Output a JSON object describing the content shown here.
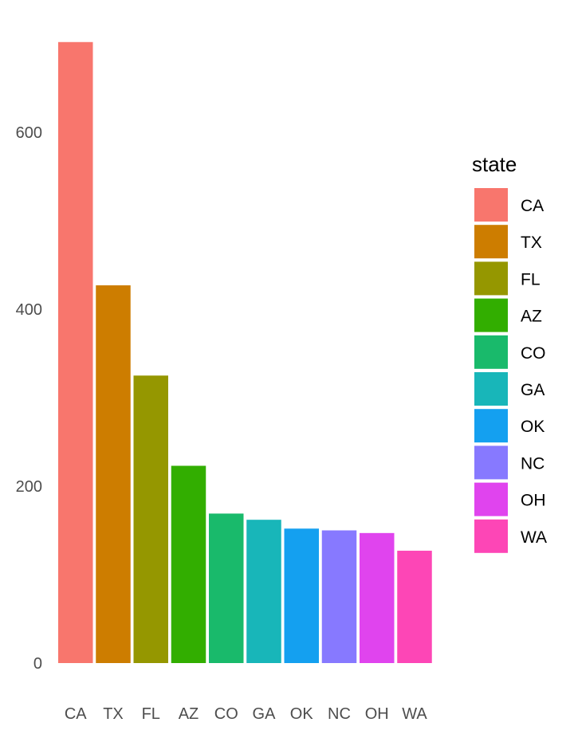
{
  "chart_data": {
    "type": "bar",
    "categories": [
      "CA",
      "TX",
      "FL",
      "AZ",
      "CO",
      "GA",
      "OK",
      "NC",
      "OH",
      "WA"
    ],
    "values": [
      702,
      427,
      325,
      223,
      169,
      162,
      152,
      150,
      147,
      127
    ],
    "colors": [
      "#F8766D",
      "#CD7D00",
      "#959700",
      "#32AE00",
      "#19BA6B",
      "#18B6B9",
      "#14A0F0",
      "#8779FF",
      "#E044EE",
      "#FD46B6"
    ],
    "yticks": [
      0,
      200,
      400,
      600
    ],
    "ylim": [
      0,
      702
    ],
    "grid": false,
    "legend": {
      "title": "state",
      "position": "right",
      "entries": [
        "CA",
        "TX",
        "FL",
        "AZ",
        "CO",
        "GA",
        "OK",
        "NC",
        "OH",
        "WA"
      ]
    }
  }
}
